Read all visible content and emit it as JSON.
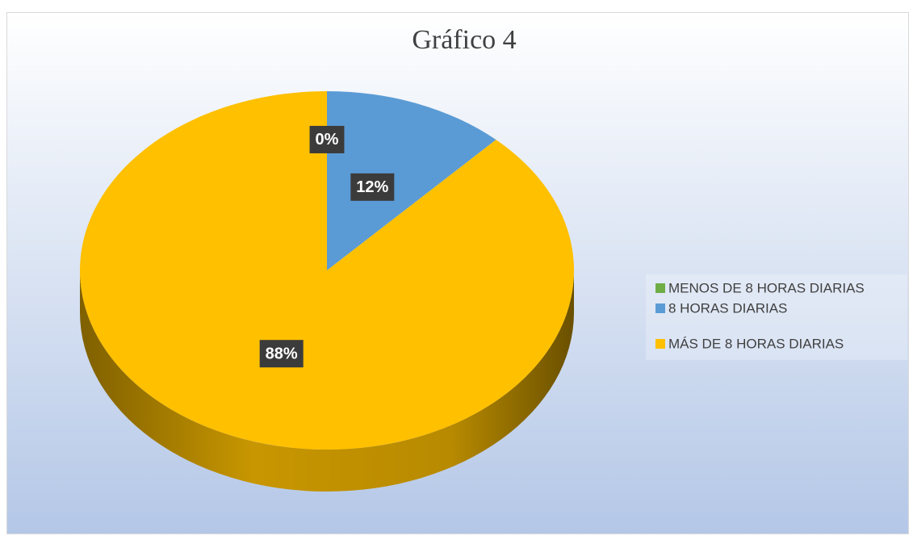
{
  "chart_data": {
    "type": "pie",
    "title": "Gráfico 4",
    "categories": [
      "MENOS DE 8 HORAS DIARIAS",
      "8 HORAS DIARIAS",
      "MÁS DE 8 HORAS DIARIAS"
    ],
    "values": [
      0,
      12,
      88
    ],
    "value_labels": [
      "0%",
      "12%",
      "88%"
    ],
    "colors": [
      "#70ad47",
      "#5b9bd5",
      "#ffc000"
    ],
    "legend": "right"
  }
}
